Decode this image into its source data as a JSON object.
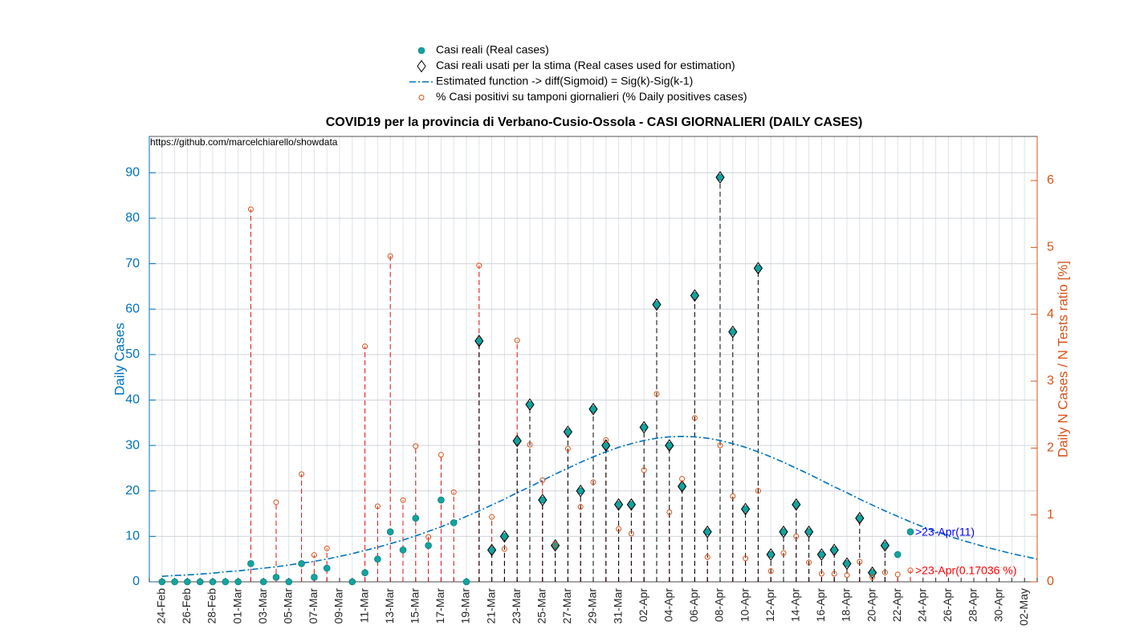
{
  "chart_data": {
    "type": "stem-combo",
    "title": "COVID19 per la provincia di Verbano-Cusio-Ossola - CASI GIORNALIERI (DAILY CASES)",
    "source": "https://github.com/marcelchiarello/showdata",
    "ylabel": "Daily Cases",
    "y2label": "Daily N Cases / N Tests ratio [%]",
    "ylabel_color": "#0072BD",
    "y2label_color": "#D95319",
    "categories": [
      null,
      "24-Feb",
      null,
      "26-Feb",
      null,
      "28-Feb",
      null,
      "01-Mar",
      null,
      "03-Mar",
      null,
      "05-Mar",
      null,
      "07-Mar",
      null,
      "09-Mar",
      null,
      "11-Mar",
      null,
      "13-Mar",
      null,
      "15-Mar",
      null,
      "17-Mar",
      null,
      "19-Mar",
      null,
      "21-Mar",
      null,
      "23-Mar",
      null,
      "25-Mar",
      null,
      "27-Mar",
      null,
      "29-Mar",
      null,
      "31-Mar",
      null,
      "02-Apr",
      null,
      "04-Apr",
      null,
      "06-Apr",
      null,
      "08-Apr",
      null,
      "10-Apr",
      null,
      "12-Apr",
      null,
      "14-Apr",
      null,
      "16-Apr",
      null,
      "18-Apr",
      null,
      "20-Apr",
      null,
      "22-Apr",
      null,
      "24-Apr",
      null,
      "26-Apr",
      null,
      "28-Apr",
      null,
      "30-Apr",
      null,
      "02-May",
      null
    ],
    "ylim": [
      0,
      98
    ],
    "yticks": [
      0,
      10,
      20,
      30,
      40,
      50,
      60,
      70,
      80,
      90
    ],
    "y2lim": [
      0,
      6.66
    ],
    "y2ticks": [
      0,
      1,
      2,
      3,
      4,
      5,
      6
    ],
    "grid": true,
    "series": [
      {
        "name": "Casi reali (Real cases)",
        "type": "scatter",
        "marker": "circle",
        "color": "#13a39e",
        "values": [
          null,
          0,
          0,
          0,
          0,
          0,
          0,
          0,
          4,
          0,
          1,
          0,
          4,
          1,
          3,
          null,
          0,
          2,
          5,
          11,
          7,
          14,
          8,
          18,
          13,
          0,
          53,
          7,
          10,
          31,
          39,
          18,
          8,
          33,
          20,
          38,
          30,
          17,
          17,
          34,
          61,
          30,
          21,
          63,
          11,
          89,
          55,
          16,
          69,
          6,
          11,
          17,
          11,
          6,
          7,
          4,
          14,
          2,
          8,
          6,
          11,
          null,
          null,
          null,
          null,
          null,
          null,
          null,
          null,
          null,
          null
        ]
      },
      {
        "name": "Casi reali usati per la stima (Real cases used for estimation)",
        "type": "stem",
        "marker": "diamond",
        "color": "#000000",
        "values": [
          null,
          null,
          null,
          null,
          null,
          null,
          null,
          null,
          null,
          null,
          null,
          null,
          null,
          null,
          null,
          null,
          null,
          null,
          null,
          null,
          null,
          null,
          null,
          null,
          null,
          null,
          53,
          7,
          10,
          31,
          39,
          18,
          8,
          33,
          20,
          38,
          30,
          17,
          17,
          34,
          61,
          30,
          21,
          63,
          11,
          89,
          55,
          16,
          69,
          6,
          11,
          17,
          11,
          6,
          7,
          4,
          14,
          2,
          8,
          null,
          null,
          null,
          null,
          null,
          null,
          null,
          null,
          null,
          null,
          null,
          null
        ]
      },
      {
        "name": "Estimated function -> diff(Sigmoid) = Sig(k)-Sig(k-1)",
        "type": "line",
        "dash": "dashdot",
        "color": "#0072BD",
        "values": [
          null,
          1.2,
          1.4,
          1.5,
          1.7,
          1.9,
          2.2,
          2.4,
          2.7,
          3.0,
          3.3,
          3.7,
          4.1,
          4.5,
          5.0,
          5.6,
          6.2,
          6.9,
          7.6,
          8.4,
          9.2,
          10.1,
          11.1,
          12.1,
          13.2,
          14.4,
          15.6,
          16.9,
          18.2,
          19.6,
          20.9,
          22.3,
          23.7,
          25.0,
          26.3,
          27.5,
          28.6,
          29.6,
          30.4,
          31.1,
          31.6,
          31.9,
          32,
          31.9,
          31.6,
          31.1,
          30.4,
          29.6,
          28.6,
          27.5,
          26.3,
          25.0,
          23.7,
          22.3,
          20.9,
          19.6,
          18.2,
          16.9,
          15.6,
          14.4,
          13.2,
          12.1,
          11.1,
          10.1,
          9.2,
          8.4,
          7.6,
          6.9,
          6.2,
          5.6,
          5.0
        ]
      },
      {
        "name": "% Casi positivi su tamponi giornalieri (% Daily positives cases)",
        "type": "stem",
        "marker": "circle-open",
        "color": "#D95319",
        "stem_color": "#e01010",
        "axis": "y2",
        "values": [
          null,
          null,
          null,
          null,
          null,
          null,
          null,
          null,
          5.57,
          null,
          1.19,
          null,
          1.61,
          0.4,
          0.5,
          null,
          null,
          3.52,
          1.13,
          4.87,
          1.22,
          2.03,
          0.67,
          1.9,
          1.34,
          null,
          4.73,
          0.97,
          0.49,
          3.61,
          2.05,
          1.52,
          0.56,
          1.99,
          1.12,
          1.49,
          2.12,
          0.79,
          0.72,
          1.67,
          2.81,
          1.04,
          1.54,
          2.45,
          0.37,
          2.04,
          1.28,
          0.35,
          1.36,
          0.16,
          0.43,
          0.68,
          0.29,
          0.12,
          0.12,
          0.1,
          0.3,
          0.07,
          0.14,
          0.11,
          0.17036,
          null,
          null,
          null,
          null,
          null,
          null,
          null,
          null,
          null,
          null
        ]
      }
    ],
    "annotations": [
      {
        "text": ">23-Apr(11)",
        "color": "#0000ff"
      },
      {
        "text": ">23-Apr(0.17036 %)",
        "color": "#ff0000"
      }
    ]
  }
}
